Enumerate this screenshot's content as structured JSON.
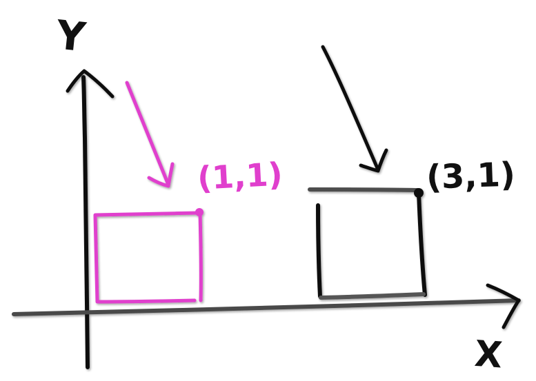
{
  "axes": {
    "x_label": "X",
    "y_label": "Y"
  },
  "squares": [
    {
      "id": "magenta",
      "corner_label": "(1,1)",
      "color": "#e03fcd"
    },
    {
      "id": "black",
      "corner_label": "(3,1)",
      "color": "#111111"
    }
  ],
  "colors": {
    "magenta": "#e03fcd",
    "ink": "#111111",
    "axis_gray": "#555555",
    "background": "#ffffff"
  }
}
